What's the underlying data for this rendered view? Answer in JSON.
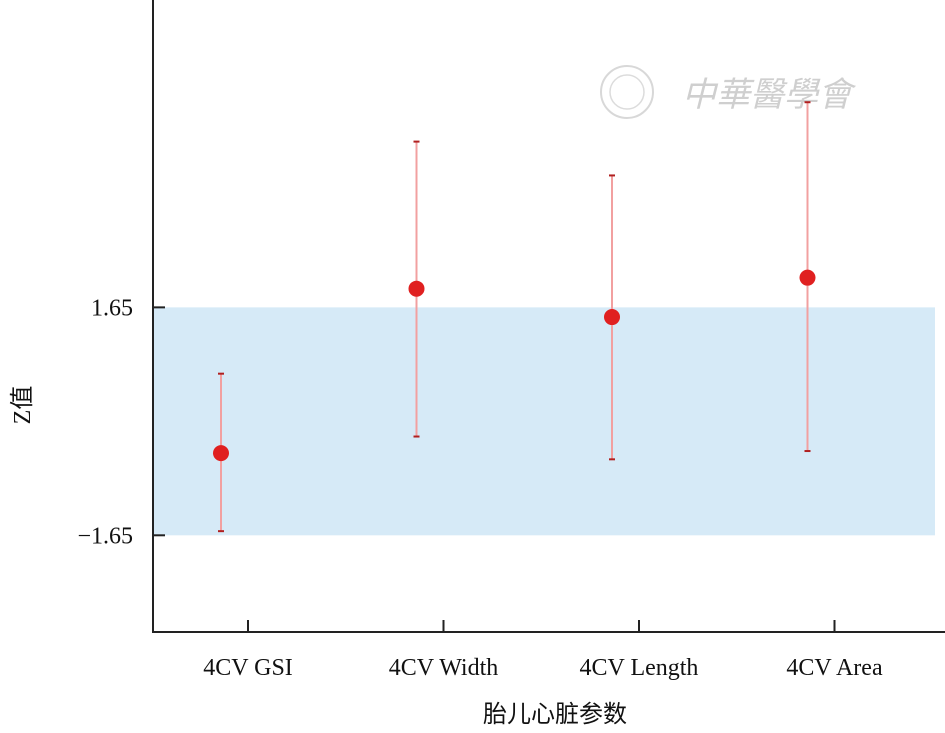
{
  "chart_data": {
    "type": "scatter",
    "title": "",
    "xlabel": "胎儿心脏参数",
    "ylabel": "Z值",
    "categories": [
      "4CV GSI",
      "4CV Width",
      "4CV Length",
      "4CV Area"
    ],
    "values": [
      -0.46,
      1.92,
      1.51,
      2.08
    ],
    "error_upper": [
      0.69,
      4.05,
      3.56,
      4.62
    ],
    "error_lower": [
      -1.59,
      -0.22,
      -0.55,
      -0.43
    ],
    "yticks": [
      1.65,
      -1.65
    ],
    "ytick_labels": [
      "1.65",
      "−1.65"
    ],
    "ylim": [
      -3.05,
      6.1
    ],
    "reference_band": [
      -1.65,
      1.65
    ],
    "grid": false,
    "colors": {
      "point": "#e02020",
      "errorbar": "#f2a0a0",
      "cap": "#b02020",
      "band": "#d6eaf7",
      "axis": "#222222"
    }
  },
  "watermark": {
    "text": "中華醫學會"
  }
}
